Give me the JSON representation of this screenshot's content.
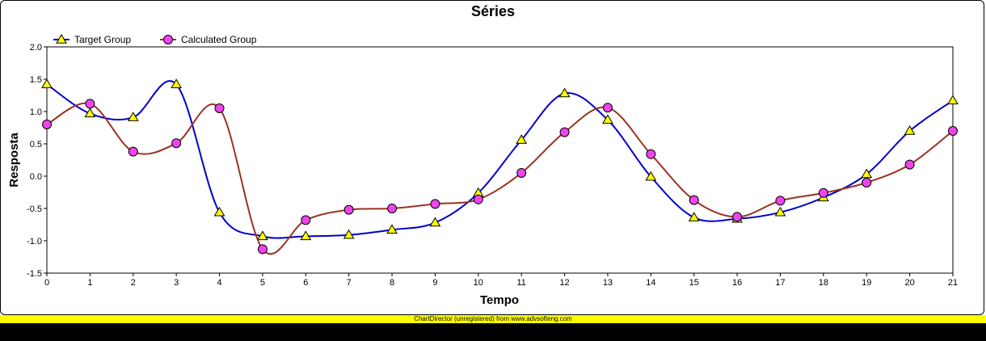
{
  "chart_data": {
    "type": "line",
    "title": "Séries",
    "xlabel": "Tempo",
    "ylabel": "Resposta",
    "x": [
      0,
      1,
      2,
      3,
      4,
      5,
      6,
      7,
      8,
      9,
      10,
      11,
      12,
      13,
      14,
      15,
      16,
      17,
      18,
      19,
      20,
      21
    ],
    "xlim": [
      0,
      21
    ],
    "ylim": [
      -1.5,
      2.0
    ],
    "yticks": [
      -1.5,
      -1.0,
      -0.5,
      0.0,
      0.5,
      1.0,
      1.5,
      2.0
    ],
    "ytick_labels": [
      "-1.5",
      "-1.0",
      "-0.5",
      "0.0",
      "0.5",
      "1.0",
      "1.5",
      "2.0"
    ],
    "xtick_labels": [
      "0",
      "1",
      "2",
      "3",
      "4",
      "5",
      "6",
      "7",
      "8",
      "9",
      "10",
      "11",
      "12",
      "13",
      "14",
      "15",
      "16",
      "17",
      "18",
      "19",
      "20",
      "21"
    ],
    "grid": false,
    "legend_position": "top-left",
    "smooth": true,
    "series": [
      {
        "name": "Target Group",
        "color": "#0000cc",
        "marker": "triangle",
        "marker_color": "#ffff00",
        "values": [
          1.42,
          0.97,
          0.91,
          1.42,
          -0.56,
          -0.93,
          -0.93,
          -0.91,
          -0.83,
          -0.72,
          -0.26,
          0.56,
          1.28,
          0.87,
          -0.01,
          -0.64,
          -0.66,
          -0.56,
          -0.33,
          0.03,
          0.7,
          1.17
        ]
      },
      {
        "name": "Calculated Group",
        "color": "#993322",
        "marker": "circle",
        "marker_color": "#ee44ee",
        "values": [
          0.8,
          1.12,
          0.38,
          0.51,
          1.05,
          -1.13,
          -0.68,
          -0.52,
          -0.5,
          -0.43,
          -0.36,
          0.05,
          0.68,
          1.06,
          0.34,
          -0.37,
          -0.63,
          -0.38,
          -0.26,
          -0.1,
          0.18,
          0.7
        ]
      }
    ]
  },
  "footer": {
    "banner_text": "ChartDirector (unregistered) from www.advsofteng.com"
  }
}
